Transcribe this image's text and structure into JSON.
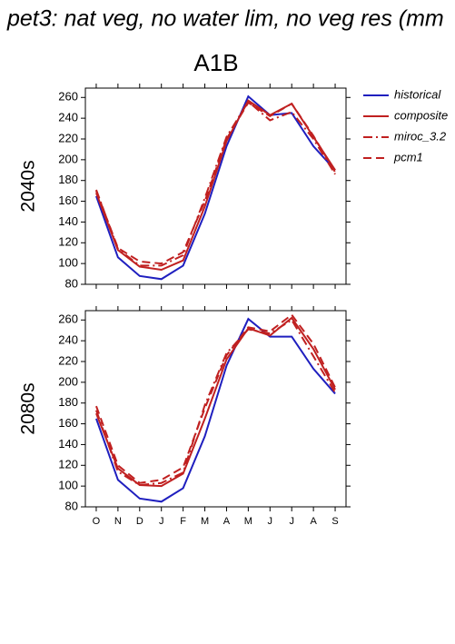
{
  "title": "pet3: nat veg, no water lim, no veg res (mm",
  "subtitle": "A1B",
  "chart_data": [
    {
      "type": "line",
      "ylabel": "2040s",
      "ylim": [
        80,
        269
      ],
      "yticks": [
        80,
        100,
        120,
        140,
        160,
        180,
        200,
        220,
        240,
        260
      ],
      "series": [
        {
          "name": "historical",
          "color": "#1f1fbf",
          "dash": "solid",
          "values": [
            165,
            106,
            88,
            85,
            98,
            148,
            213,
            261,
            243,
            245,
            213,
            190
          ]
        },
        {
          "name": "composite",
          "color": "#c02020",
          "dash": "solid",
          "values": [
            168,
            113,
            97,
            94,
            103,
            155,
            218,
            257,
            243,
            254,
            222,
            190
          ]
        },
        {
          "name": "miroc_3.2",
          "color": "#c02020",
          "dash": "dashdot",
          "values": [
            171,
            114,
            98,
            98,
            108,
            163,
            222,
            256,
            238,
            246,
            220,
            186
          ]
        },
        {
          "name": "pcm1",
          "color": "#c02020",
          "dash": "dash",
          "values": [
            170,
            115,
            102,
            100,
            111,
            160,
            220,
            255,
            242,
            254,
            223,
            188
          ]
        }
      ]
    },
    {
      "type": "line",
      "ylabel": "2080s",
      "ylim": [
        80,
        269
      ],
      "yticks": [
        80,
        100,
        120,
        140,
        160,
        180,
        200,
        220,
        240,
        260
      ],
      "categories": [
        "O",
        "N",
        "D",
        "J",
        "F",
        "M",
        "A",
        "M",
        "J",
        "J",
        "A",
        "S"
      ],
      "series": [
        {
          "name": "historical",
          "color": "#1f1fbf",
          "dash": "solid",
          "values": [
            165,
            106,
            88,
            85,
            98,
            148,
            216,
            261,
            244,
            244,
            213,
            189
          ]
        },
        {
          "name": "composite",
          "color": "#c02020",
          "dash": "solid",
          "values": [
            170,
            117,
            101,
            100,
            112,
            165,
            222,
            252,
            245,
            262,
            232,
            193
          ]
        },
        {
          "name": "miroc_3.2",
          "color": "#c02020",
          "dash": "dashdot",
          "values": [
            173,
            114,
            101,
            103,
            113,
            178,
            228,
            251,
            247,
            260,
            225,
            190
          ]
        },
        {
          "name": "pcm1",
          "color": "#c02020",
          "dash": "dash",
          "values": [
            177,
            120,
            103,
            106,
            118,
            175,
            226,
            253,
            249,
            265,
            237,
            195
          ]
        }
      ]
    }
  ]
}
